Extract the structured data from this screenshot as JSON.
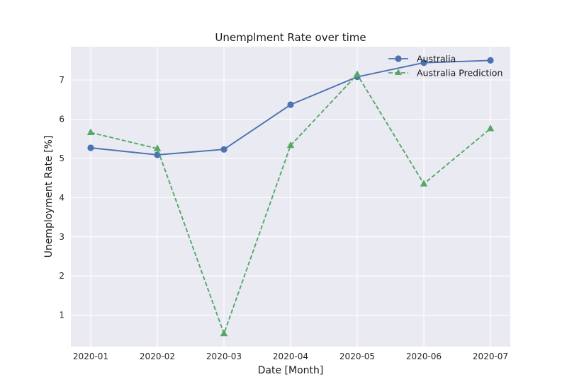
{
  "chart_data": {
    "type": "line",
    "title": "Unemplment Rate over time",
    "xlabel": "Date [Month]",
    "ylabel": "Unemployment Rate [%]",
    "categories": [
      "2020-01",
      "2020-02",
      "2020-03",
      "2020-04",
      "2020-05",
      "2020-06",
      "2020-07"
    ],
    "yticks": [
      1,
      2,
      3,
      4,
      5,
      6,
      7
    ],
    "ylim": [
      0.2,
      7.85
    ],
    "grid": true,
    "legend_position": "top-right",
    "series": [
      {
        "name": "Australia",
        "values": [
          5.27,
          5.09,
          5.23,
          6.37,
          7.08,
          7.44,
          7.5
        ],
        "color": "#4c72b0",
        "linestyle": "solid",
        "marker": "circle"
      },
      {
        "name": "Australia Prediction",
        "values": [
          5.66,
          5.25,
          0.53,
          5.33,
          7.14,
          4.35,
          5.76
        ],
        "color": "#55a868",
        "linestyle": "dashed",
        "marker": "triangle"
      }
    ],
    "background_color": "#eaeaf2",
    "grid_color": "#ffffff"
  }
}
